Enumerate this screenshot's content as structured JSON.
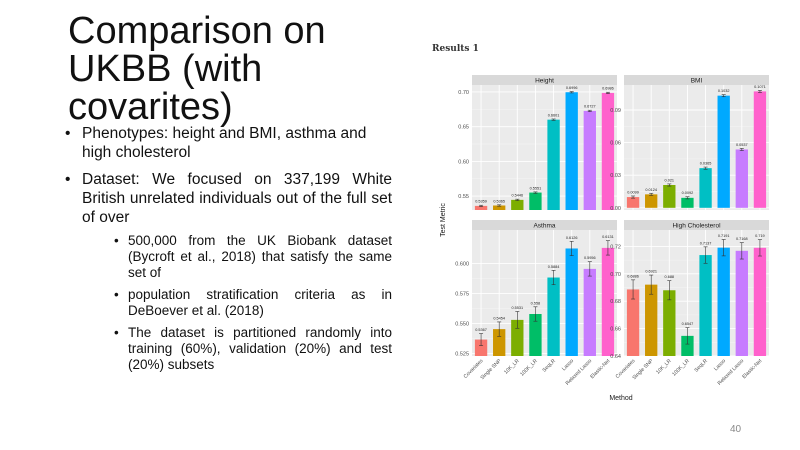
{
  "slide": {
    "title": "Comparison on UKBB (with covarites)",
    "bullets": [
      "Phenotypes: height and BMI, asthma and high cholesterol",
      "Dataset: We focused on 337,199 White British unrelated individuals out of the full set of over"
    ],
    "sub_bullets": [
      "500,000 from the UK Biobank dataset (Bycroft et al., 2018) that satisfy the same set of",
      "population stratification criteria as in DeBoever et al. (2018)",
      "The dataset is partitioned randomly into training (60%), validation (20%) and test (20%) subsets"
    ],
    "figure_label": "Results 1",
    "page_number": "40"
  },
  "chart_data": {
    "type": "bar",
    "xlabel": "Method",
    "ylabel": "Test Metric",
    "categories": [
      "Covariates",
      "Single SNP",
      "10K_LR",
      "100K_LR",
      "SeqLR",
      "Lasso",
      "Relaxed Lasso",
      "Elastic-Net"
    ],
    "colors": [
      "#F8766D",
      "#CD9600",
      "#7CAE00",
      "#00BE67",
      "#00BFC4",
      "#00A9FF",
      "#C77CFF",
      "#FF61CC"
    ],
    "panels": [
      {
        "title": "Height",
        "values": [
          0.5359,
          0.5365,
          0.5446,
          0.5551,
          0.6601,
          0.6996,
          0.6727,
          0.6986
        ],
        "labels": [
          "0.5359",
          "0.5365",
          "0.5446",
          "0.5551",
          "0.6601",
          "0.6996",
          "0.6727",
          "0.6986"
        ],
        "errors": [
          0.001,
          0.001,
          0.001,
          0.001,
          0.001,
          0.001,
          0.001,
          0.001
        ],
        "ylim": [
          0.53,
          0.71
        ],
        "ticks": [
          0.55,
          0.6,
          0.65,
          0.7
        ],
        "tick_labels": [
          "0.55",
          "0.60",
          "0.65",
          "0.70"
        ]
      },
      {
        "title": "BMI",
        "values": [
          0.0099,
          0.0124,
          0.021,
          0.0092,
          0.0365,
          0.1032,
          0.0537,
          0.1071
        ],
        "labels": [
          "0.0099",
          "0.0124",
          "0.021",
          "0.0092",
          "0.0365",
          "0.1032",
          "0.0537",
          "0.1071"
        ],
        "errors": [
          0.001,
          0.001,
          0.001,
          0.001,
          0.001,
          0.001,
          0.001,
          0.001
        ],
        "ylim": [
          -0.002,
          0.113
        ],
        "ticks": [
          0.0,
          0.03,
          0.06,
          0.09
        ],
        "tick_labels": [
          "0.00",
          "0.03",
          "0.06",
          "0.09"
        ]
      },
      {
        "title": "Asthma",
        "values": [
          0.5367,
          0.5454,
          0.5531,
          0.558,
          0.5884,
          0.6126,
          0.5956,
          0.6131
        ],
        "labels": [
          "0.5367",
          "0.5454",
          "0.5531",
          "0.558",
          "0.5884",
          "0.6126",
          "0.5956",
          "0.6131"
        ],
        "errors": [
          0.005,
          0.006,
          0.007,
          0.006,
          0.006,
          0.006,
          0.006,
          0.006
        ],
        "ylim": [
          0.523,
          0.628
        ],
        "ticks": [
          0.525,
          0.55,
          0.575,
          0.6
        ],
        "tick_labels": [
          "0.525",
          "0.550",
          "0.575",
          "0.600"
        ]
      },
      {
        "title": "High Cholesterol",
        "values": [
          0.6886,
          0.6921,
          0.688,
          0.6547,
          0.7137,
          0.7191,
          0.7168,
          0.719
        ],
        "labels": [
          "0.6886",
          "0.6921",
          "0.688",
          "0.6547",
          "0.7137",
          "0.7191",
          "0.7168",
          "0.719"
        ],
        "errors": [
          0.007,
          0.007,
          0.007,
          0.006,
          0.006,
          0.006,
          0.006,
          0.006
        ],
        "ylim": [
          0.64,
          0.732
        ],
        "ticks": [
          0.64,
          0.66,
          0.68,
          0.7,
          0.72
        ],
        "tick_labels": [
          "0.64",
          "0.66",
          "0.68",
          "0.70",
          "0.72"
        ]
      }
    ]
  }
}
